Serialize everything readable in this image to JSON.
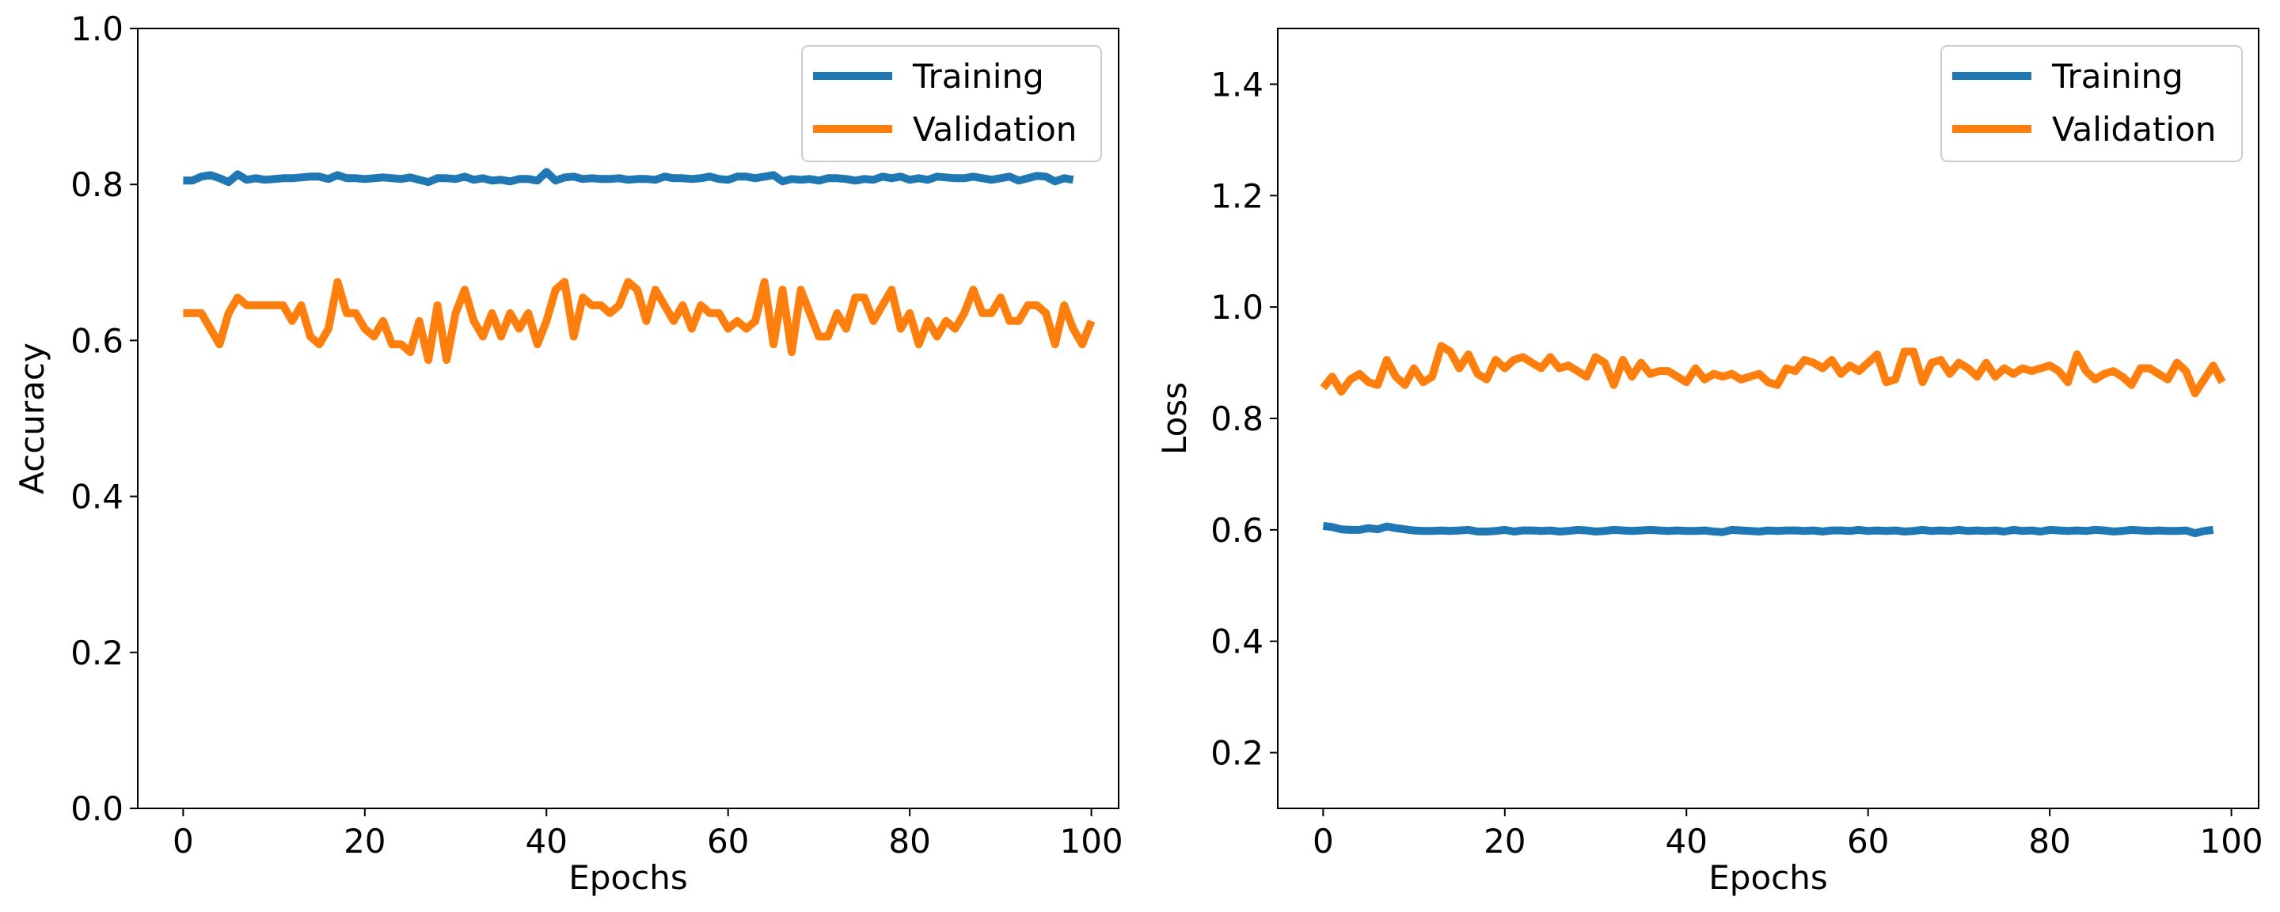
{
  "chart_data": [
    {
      "type": "line",
      "title": "",
      "xlabel": "Epochs",
      "ylabel": "Accuracy",
      "xlim": [
        -5,
        103
      ],
      "ylim": [
        0.0,
        1.0
      ],
      "xticks": [
        0,
        20,
        40,
        60,
        80,
        100
      ],
      "yticks": [
        0.0,
        0.2,
        0.4,
        0.6,
        0.8,
        1.0
      ],
      "xtick_labels": [
        "0",
        "20",
        "40",
        "60",
        "80",
        "100"
      ],
      "ytick_labels": [
        "0.0",
        "0.2",
        "0.4",
        "0.6",
        "0.8",
        "1.0"
      ],
      "grid": false,
      "legend_position": "top-right",
      "series": [
        {
          "name": "Training",
          "color": "#1f77b4",
          "values": [
            0.805,
            0.805,
            0.81,
            0.812,
            0.808,
            0.803,
            0.813,
            0.806,
            0.808,
            0.806,
            0.807,
            0.808,
            0.808,
            0.809,
            0.81,
            0.81,
            0.807,
            0.812,
            0.808,
            0.808,
            0.807,
            0.808,
            0.809,
            0.808,
            0.807,
            0.809,
            0.806,
            0.803,
            0.808,
            0.808,
            0.807,
            0.81,
            0.806,
            0.808,
            0.805,
            0.806,
            0.804,
            0.807,
            0.807,
            0.805,
            0.816,
            0.805,
            0.809,
            0.81,
            0.807,
            0.808,
            0.807,
            0.807,
            0.808,
            0.806,
            0.807,
            0.807,
            0.806,
            0.81,
            0.808,
            0.808,
            0.807,
            0.808,
            0.81,
            0.807,
            0.806,
            0.81,
            0.81,
            0.808,
            0.81,
            0.812,
            0.804,
            0.807,
            0.806,
            0.807,
            0.805,
            0.808,
            0.808,
            0.807,
            0.805,
            0.807,
            0.806,
            0.81,
            0.808,
            0.81,
            0.806,
            0.808,
            0.806,
            0.81,
            0.809,
            0.808,
            0.808,
            0.81,
            0.808,
            0.806,
            0.808,
            0.81,
            0.805,
            0.808,
            0.811,
            0.81,
            0.804,
            0.808,
            0.806
          ]
        },
        {
          "name": "Validation",
          "color": "#ff7f0e",
          "values": [
            0.635,
            0.635,
            0.635,
            0.615,
            0.595,
            0.635,
            0.655,
            0.645,
            0.645,
            0.645,
            0.645,
            0.645,
            0.625,
            0.645,
            0.605,
            0.595,
            0.615,
            0.675,
            0.635,
            0.635,
            0.615,
            0.605,
            0.625,
            0.595,
            0.595,
            0.585,
            0.625,
            0.575,
            0.645,
            0.575,
            0.635,
            0.665,
            0.625,
            0.605,
            0.635,
            0.605,
            0.635,
            0.615,
            0.635,
            0.595,
            0.625,
            0.665,
            0.675,
            0.605,
            0.655,
            0.645,
            0.645,
            0.635,
            0.645,
            0.675,
            0.665,
            0.625,
            0.665,
            0.645,
            0.625,
            0.645,
            0.615,
            0.645,
            0.635,
            0.635,
            0.615,
            0.625,
            0.615,
            0.625,
            0.675,
            0.595,
            0.665,
            0.585,
            0.665,
            0.635,
            0.605,
            0.605,
            0.635,
            0.615,
            0.655,
            0.655,
            0.625,
            0.645,
            0.665,
            0.615,
            0.635,
            0.595,
            0.625,
            0.605,
            0.625,
            0.615,
            0.635,
            0.665,
            0.635,
            0.635,
            0.655,
            0.625,
            0.625,
            0.645,
            0.645,
            0.635,
            0.595,
            0.645,
            0.615,
            0.595,
            0.625
          ]
        }
      ]
    },
    {
      "type": "line",
      "title": "",
      "xlabel": "Epochs",
      "ylabel": "Loss",
      "xlim": [
        -5,
        103
      ],
      "ylim": [
        0.1,
        1.5
      ],
      "xticks": [
        0,
        20,
        40,
        60,
        80,
        100
      ],
      "yticks": [
        0.2,
        0.4,
        0.6,
        0.8,
        1.0,
        1.2,
        1.4
      ],
      "xtick_labels": [
        "0",
        "20",
        "40",
        "60",
        "80",
        "100"
      ],
      "ytick_labels": [
        "0.2",
        "0.4",
        "0.6",
        "0.8",
        "1.0",
        "1.2",
        "1.4"
      ],
      "grid": false,
      "legend_position": "top-right",
      "series": [
        {
          "name": "Training",
          "color": "#1f77b4",
          "values": [
            0.607,
            0.605,
            0.601,
            0.6,
            0.6,
            0.603,
            0.601,
            0.606,
            0.603,
            0.601,
            0.599,
            0.598,
            0.598,
            0.599,
            0.598,
            0.599,
            0.6,
            0.597,
            0.597,
            0.598,
            0.6,
            0.597,
            0.599,
            0.599,
            0.598,
            0.599,
            0.597,
            0.598,
            0.6,
            0.599,
            0.597,
            0.598,
            0.6,
            0.599,
            0.598,
            0.599,
            0.6,
            0.599,
            0.598,
            0.599,
            0.598,
            0.598,
            0.599,
            0.597,
            0.596,
            0.6,
            0.599,
            0.598,
            0.597,
            0.599,
            0.598,
            0.599,
            0.599,
            0.598,
            0.599,
            0.597,
            0.599,
            0.599,
            0.598,
            0.6,
            0.598,
            0.599,
            0.598,
            0.599,
            0.597,
            0.598,
            0.6,
            0.598,
            0.599,
            0.598,
            0.6,
            0.598,
            0.599,
            0.598,
            0.599,
            0.597,
            0.6,
            0.598,
            0.599,
            0.597,
            0.6,
            0.599,
            0.598,
            0.599,
            0.598,
            0.6,
            0.599,
            0.597,
            0.598,
            0.6,
            0.599,
            0.598,
            0.599,
            0.598,
            0.598,
            0.599,
            0.594,
            0.598,
            0.6
          ]
        },
        {
          "name": "Validation",
          "color": "#ff7f0e",
          "values": [
            0.855,
            0.875,
            0.848,
            0.87,
            0.88,
            0.865,
            0.86,
            0.905,
            0.875,
            0.86,
            0.89,
            0.865,
            0.875,
            0.93,
            0.92,
            0.89,
            0.915,
            0.88,
            0.87,
            0.905,
            0.89,
            0.905,
            0.91,
            0.9,
            0.89,
            0.91,
            0.89,
            0.895,
            0.885,
            0.875,
            0.91,
            0.9,
            0.86,
            0.905,
            0.875,
            0.9,
            0.88,
            0.885,
            0.885,
            0.875,
            0.865,
            0.89,
            0.87,
            0.88,
            0.875,
            0.88,
            0.87,
            0.875,
            0.88,
            0.865,
            0.86,
            0.89,
            0.885,
            0.905,
            0.9,
            0.89,
            0.905,
            0.88,
            0.895,
            0.885,
            0.9,
            0.915,
            0.865,
            0.87,
            0.92,
            0.92,
            0.865,
            0.9,
            0.905,
            0.88,
            0.9,
            0.89,
            0.875,
            0.9,
            0.875,
            0.89,
            0.88,
            0.89,
            0.885,
            0.89,
            0.895,
            0.885,
            0.865,
            0.915,
            0.885,
            0.87,
            0.88,
            0.885,
            0.875,
            0.86,
            0.89,
            0.89,
            0.88,
            0.87,
            0.9,
            0.885,
            0.845,
            0.87,
            0.895,
            0.865
          ]
        }
      ]
    }
  ]
}
